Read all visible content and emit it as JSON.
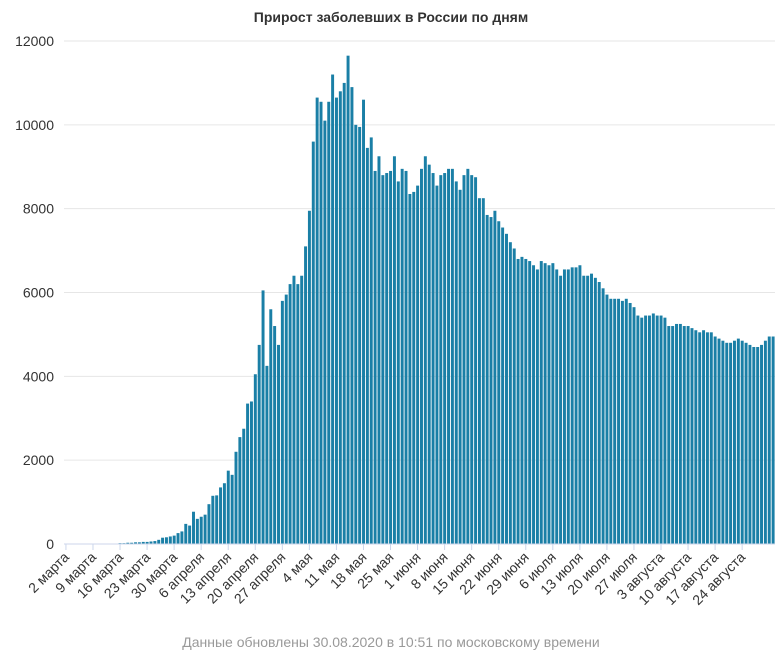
{
  "chart_data": {
    "type": "bar",
    "title": "Прирост заболевших в России по дням",
    "xlabel": "",
    "ylabel": "",
    "ylim": [
      0,
      12000
    ],
    "yticks": [
      0,
      2000,
      4000,
      6000,
      8000,
      10000,
      12000
    ],
    "grid": true,
    "legend": "none",
    "bar_color": "#1a7fa6",
    "x_tick_labels": [
      "2 марта",
      "9 марта",
      "16 марта",
      "23 марта",
      "30 марта",
      "6 апреля",
      "13 апреля",
      "20 апреля",
      "27 апреля",
      "4 мая",
      "11 мая",
      "18 мая",
      "25 мая",
      "1 июня",
      "8 июня",
      "15 июня",
      "22 июня",
      "29 июня",
      "6 июля",
      "13 июля",
      "20 июля",
      "27 июля",
      "3 августа",
      "10 августа",
      "17 августа",
      "24 августа"
    ],
    "x_start": "2020-03-02",
    "values": [
      0,
      0,
      0,
      0,
      0,
      0,
      0,
      0,
      0,
      0,
      0,
      0,
      10,
      10,
      20,
      20,
      30,
      30,
      40,
      40,
      50,
      50,
      60,
      70,
      100,
      150,
      160,
      180,
      200,
      260,
      300,
      480,
      440,
      770,
      600,
      650,
      700,
      950,
      1150,
      1160,
      1350,
      1450,
      1750,
      1650,
      2200,
      2550,
      2750,
      3350,
      3400,
      4050,
      4750,
      6050,
      4250,
      5600,
      5200,
      4750,
      5800,
      5950,
      6200,
      6400,
      6200,
      6400,
      7100,
      7950,
      9600,
      10650,
      10550,
      10100,
      10550,
      11200,
      10650,
      10800,
      11000,
      11650,
      10900,
      10000,
      9950,
      10600,
      9450,
      9700,
      8900,
      9250,
      8800,
      8850,
      8900,
      9250,
      8650,
      8950,
      8900,
      8350,
      8400,
      8550,
      8950,
      9250,
      9050,
      8850,
      8550,
      8800,
      8850,
      8950,
      8950,
      8650,
      8450,
      8800,
      8950,
      8800,
      8750,
      8250,
      8250,
      7850,
      7800,
      7950,
      7700,
      7550,
      7400,
      7200,
      7050,
      6800,
      6850,
      6800,
      6750,
      6650,
      6550,
      6750,
      6700,
      6650,
      6700,
      6550,
      6400,
      6550,
      6550,
      6600,
      6600,
      6650,
      6400,
      6400,
      6450,
      6350,
      6250,
      6100,
      5950,
      5850,
      5850,
      5850,
      5800,
      5850,
      5750,
      5650,
      5450,
      5400,
      5450,
      5450,
      5500,
      5450,
      5450,
      5400,
      5200,
      5200,
      5250,
      5250,
      5200,
      5200,
      5150,
      5100,
      5050,
      5100,
      5050,
      5050,
      4950,
      4900,
      4850,
      4800,
      4800,
      4850,
      4900,
      4850,
      4800,
      4750,
      4700,
      4700,
      4750,
      4850,
      4950,
      4950
    ]
  },
  "footnote": "Данные обновлены 30.08.2020 в 10:51 по московскому времени"
}
